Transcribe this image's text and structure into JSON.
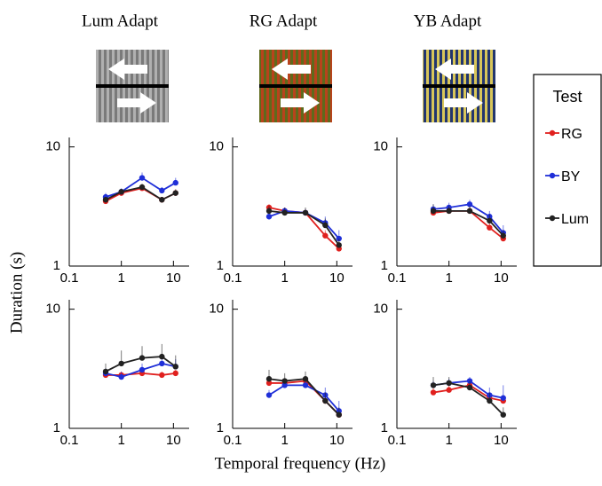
{
  "chart_data": [
    {
      "type": "line",
      "title": "Lum Adapt",
      "x": [
        0.5,
        1,
        2.5,
        6,
        11
      ],
      "xlim": [
        0.1,
        20
      ],
      "ylim": [
        1,
        12
      ],
      "xticks": [
        0.1,
        1,
        10
      ],
      "yticks": [
        1,
        10
      ],
      "xscale": "log",
      "yscale": "log",
      "series": [
        {
          "name": "RG",
          "color": "#e0201e",
          "values": [
            3.5,
            4.1,
            4.5,
            3.6,
            4.1
          ],
          "errors": [
            0.2,
            0.2,
            0.3,
            0.2,
            0.3
          ]
        },
        {
          "name": "BY",
          "color": "#1f2fd8",
          "values": [
            3.8,
            4.2,
            5.5,
            4.3,
            5.0
          ],
          "errors": [
            0.3,
            0.3,
            0.6,
            0.3,
            0.5
          ]
        },
        {
          "name": "Lum",
          "color": "#222222",
          "values": [
            3.6,
            4.2,
            4.6,
            3.6,
            4.1
          ],
          "errors": [
            0.2,
            0.2,
            0.3,
            0.2,
            0.3
          ]
        }
      ]
    },
    {
      "type": "line",
      "title": "RG Adapt",
      "x": [
        0.5,
        1,
        2.5,
        6,
        11
      ],
      "xlim": [
        0.1,
        20
      ],
      "ylim": [
        1,
        12
      ],
      "xticks": [
        0.1,
        1,
        10
      ],
      "yticks": [
        1,
        10
      ],
      "xscale": "log",
      "yscale": "log",
      "series": [
        {
          "color": "#e0201e",
          "values": [
            3.1,
            2.9,
            2.8,
            1.8,
            1.4
          ],
          "errors": [
            0.2,
            0.2,
            0.2,
            0.2,
            0.1
          ]
        },
        {
          "color": "#1f2fd8",
          "values": [
            2.6,
            2.9,
            2.8,
            2.3,
            1.7
          ],
          "errors": [
            0.2,
            0.2,
            0.2,
            0.3,
            0.3
          ]
        },
        {
          "color": "#222222",
          "values": [
            2.9,
            2.8,
            2.8,
            2.2,
            1.5
          ],
          "errors": [
            0.3,
            0.3,
            0.3,
            0.3,
            0.2
          ]
        }
      ]
    },
    {
      "type": "line",
      "title": "YB Adapt",
      "x": [
        0.5,
        1,
        2.5,
        6,
        11
      ],
      "xlim": [
        0.1,
        20
      ],
      "ylim": [
        1,
        12
      ],
      "xticks": [
        0.1,
        1,
        10
      ],
      "yticks": [
        1,
        10
      ],
      "xscale": "log",
      "yscale": "log",
      "series": [
        {
          "color": "#e0201e",
          "values": [
            2.8,
            2.9,
            2.9,
            2.1,
            1.7
          ],
          "errors": [
            0.2,
            0.2,
            0.2,
            0.2,
            0.2
          ]
        },
        {
          "color": "#1f2fd8",
          "values": [
            3.0,
            3.1,
            3.3,
            2.6,
            1.9
          ],
          "errors": [
            0.3,
            0.3,
            0.3,
            0.3,
            0.3
          ]
        },
        {
          "color": "#222222",
          "values": [
            2.9,
            2.9,
            2.9,
            2.4,
            1.8
          ],
          "errors": [
            0.4,
            0.3,
            0.3,
            0.3,
            0.2
          ]
        }
      ]
    },
    {
      "type": "line",
      "x": [
        0.5,
        1,
        2.5,
        6,
        11
      ],
      "xlim": [
        0.1,
        20
      ],
      "ylim": [
        1,
        12
      ],
      "xticks": [
        0.1,
        1,
        10
      ],
      "yticks": [
        1,
        10
      ],
      "xscale": "log",
      "yscale": "log",
      "series": [
        {
          "color": "#e0201e",
          "values": [
            2.8,
            2.8,
            2.9,
            2.8,
            2.9
          ],
          "errors": [
            0.2,
            0.2,
            0.2,
            0.2,
            0.2
          ]
        },
        {
          "color": "#1f2fd8",
          "values": [
            2.9,
            2.7,
            3.1,
            3.5,
            3.3
          ],
          "errors": [
            0.3,
            0.3,
            0.4,
            0.6,
            0.5
          ]
        },
        {
          "color": "#222222",
          "values": [
            3.0,
            3.5,
            3.9,
            4.0,
            3.3
          ],
          "errors": [
            0.5,
            1.0,
            1.0,
            1.1,
            0.8
          ]
        }
      ]
    },
    {
      "type": "line",
      "x": [
        0.5,
        1,
        2.5,
        6,
        11
      ],
      "xlim": [
        0.1,
        20
      ],
      "ylim": [
        1,
        12
      ],
      "xticks": [
        0.1,
        1,
        10
      ],
      "yticks": [
        1,
        10
      ],
      "xscale": "log",
      "yscale": "log",
      "series": [
        {
          "color": "#e0201e",
          "values": [
            2.4,
            2.4,
            2.5,
            1.7,
            1.3
          ],
          "errors": [
            0.2,
            0.2,
            0.2,
            0.2,
            0.1
          ]
        },
        {
          "color": "#1f2fd8",
          "values": [
            1.9,
            2.3,
            2.3,
            1.9,
            1.4
          ],
          "errors": [
            0.2,
            0.2,
            0.2,
            0.3,
            0.3
          ]
        },
        {
          "color": "#222222",
          "values": [
            2.6,
            2.5,
            2.6,
            1.7,
            1.3
          ],
          "errors": [
            0.5,
            0.4,
            0.4,
            0.3,
            0.2
          ]
        }
      ]
    },
    {
      "type": "line",
      "x": [
        0.5,
        1,
        2.5,
        6,
        11
      ],
      "xlim": [
        0.1,
        20
      ],
      "ylim": [
        1,
        12
      ],
      "xticks": [
        0.1,
        1,
        10
      ],
      "yticks": [
        1,
        10
      ],
      "xscale": "log",
      "yscale": "log",
      "series": [
        {
          "color": "#e0201e",
          "values": [
            2.0,
            2.1,
            2.3,
            1.8,
            1.7
          ],
          "errors": [
            0.2,
            0.2,
            0.2,
            0.2,
            0.2
          ]
        },
        {
          "color": "#1f2fd8",
          "values": [
            2.3,
            2.4,
            2.5,
            1.9,
            1.8
          ],
          "errors": [
            0.2,
            0.2,
            0.2,
            0.3,
            0.5
          ]
        },
        {
          "color": "#222222",
          "values": [
            2.3,
            2.4,
            2.2,
            1.7,
            1.3
          ],
          "errors": [
            0.4,
            0.3,
            0.3,
            0.3,
            0.2
          ]
        }
      ]
    }
  ],
  "ylabel": "Duration (s)",
  "xlabel": "Temporal frequency (Hz)",
  "legend_title": "Test"
}
